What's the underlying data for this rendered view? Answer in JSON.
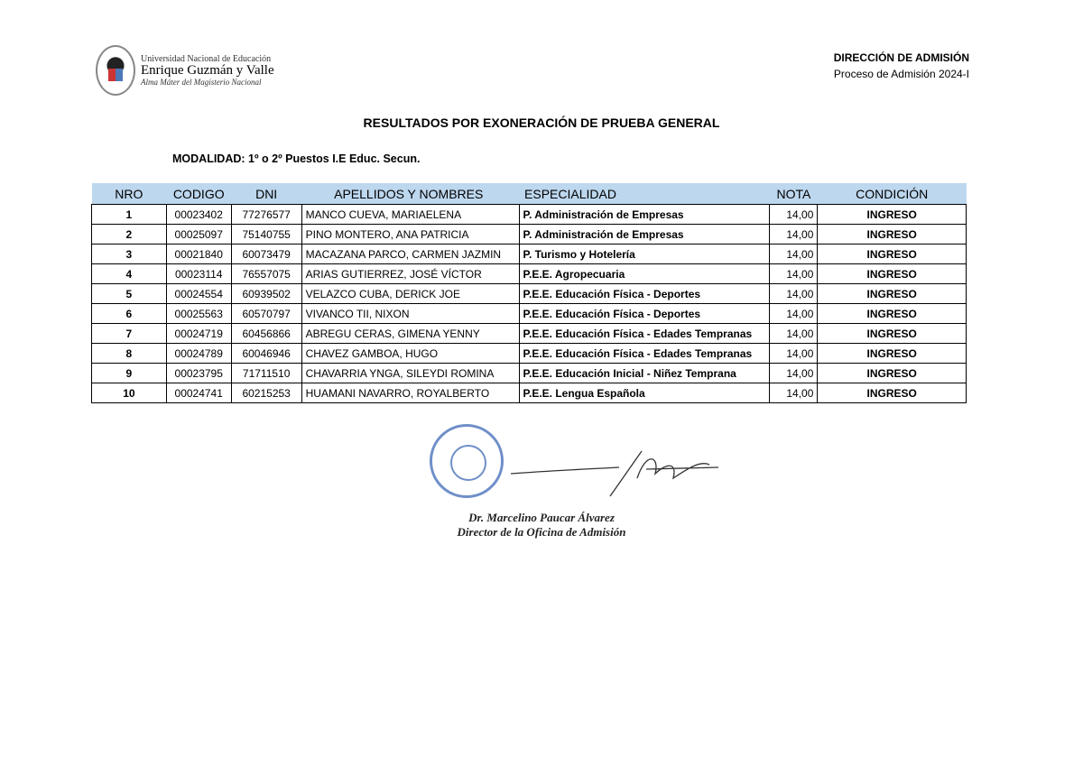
{
  "header": {
    "university_line1": "Universidad Nacional de Educación",
    "university_line2": "Enrique Guzmán y Valle",
    "university_line3": "Alma Máter del Magisterio Nacional",
    "office": "DIRECCIÓN DE ADMISIÓN",
    "process": "Proceso de Admisión 2024-I"
  },
  "title": "RESULTADOS POR EXONERACIÓN DE PRUEBA GENERAL",
  "modalidad": "MODALIDAD: 1º o 2º Puestos I.E Educ. Secun.",
  "table": {
    "header_color": "#bdd7ee",
    "columns": [
      "NRO",
      "CODIGO",
      "DNI",
      "APELLIDOS Y NOMBRES",
      "ESPECIALIDAD",
      "NOTA",
      "CONDICIÓN"
    ],
    "rows": [
      [
        "1",
        "00023402",
        "77276577",
        "MANCO CUEVA, MARIAELENA",
        "P. Administración de Empresas",
        "14,00",
        "INGRESO"
      ],
      [
        "2",
        "00025097",
        "75140755",
        "PINO MONTERO, ANA PATRICIA",
        "P. Administración de Empresas",
        "14,00",
        "INGRESO"
      ],
      [
        "3",
        "00021840",
        "60073479",
        "MACAZANA PARCO, CARMEN JAZMIN",
        "P. Turismo y Hotelería",
        "14,00",
        "INGRESO"
      ],
      [
        "4",
        "00023114",
        "76557075",
        "ARIAS GUTIERREZ, JOSÉ VÍCTOR",
        "P.E.E. Agropecuaria",
        "14,00",
        "INGRESO"
      ],
      [
        "5",
        "00024554",
        "60939502",
        "VELAZCO CUBA, DERICK JOE",
        "P.E.E. Educación Física - Deportes",
        "14,00",
        "INGRESO"
      ],
      [
        "6",
        "00025563",
        "60570797",
        "VIVANCO TII, NIXON",
        "P.E.E. Educación Física - Deportes",
        "14,00",
        "INGRESO"
      ],
      [
        "7",
        "00024719",
        "60456866",
        "ABREGU CERAS, GIMENA YENNY",
        "P.E.E. Educación Física - Edades Tempranas",
        "14,00",
        "INGRESO"
      ],
      [
        "8",
        "00024789",
        "60046946",
        "CHAVEZ GAMBOA, HUGO",
        "P.E.E. Educación Física - Edades Tempranas",
        "14,00",
        "INGRESO"
      ],
      [
        "9",
        "00023795",
        "71711510",
        "CHAVARRIA YNGA, SILEYDI ROMINA",
        "P.E.E. Educación Inicial - Niñez Temprana",
        "14,00",
        "INGRESO"
      ],
      [
        "10",
        "00024741",
        "60215253",
        "HUAMANI NAVARRO, ROYALBERTO",
        "P.E.E. Lengua Española",
        "14,00",
        "INGRESO"
      ]
    ]
  },
  "signature": {
    "name": "Dr. Marcelino Paucar Álvarez",
    "role": "Director de la Oficina de Admisión"
  }
}
